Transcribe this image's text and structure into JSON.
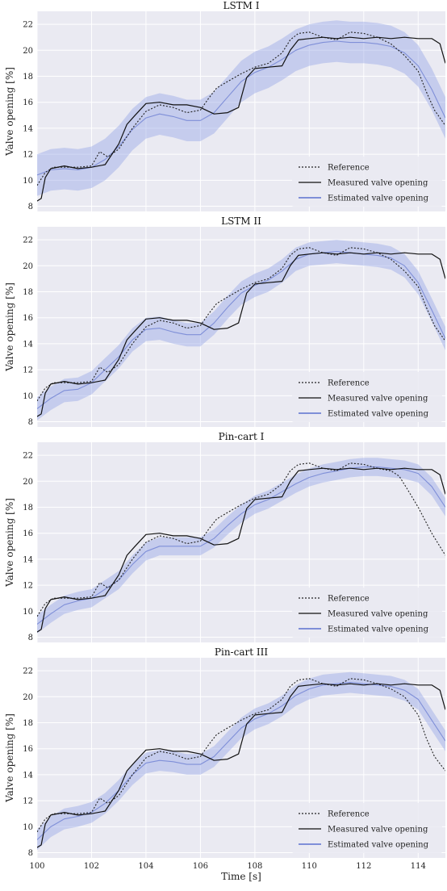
{
  "chart_data": [
    {
      "type": "line",
      "title": "LSTM I",
      "xlabel": "",
      "ylabel": "Valve opening [%]",
      "xlim": [
        100,
        115
      ],
      "ylim": [
        7.6,
        23
      ],
      "grid": true,
      "legend": "bottom-right",
      "xticks": [
        100,
        102,
        104,
        106,
        108,
        110,
        112,
        114
      ],
      "yticks": [
        8,
        10,
        12,
        14,
        16,
        18,
        20,
        22
      ],
      "series": [
        {
          "name": "Reference",
          "style": "dotted",
          "color": "#222222",
          "x": [
            100,
            100.3,
            100.6,
            101,
            101.5,
            102,
            102.3,
            102.6,
            103,
            103.5,
            104,
            104.5,
            105,
            105.5,
            106,
            106.3,
            106.6,
            107,
            107.5,
            108,
            108.5,
            109,
            109.3,
            109.6,
            110,
            110.5,
            111,
            111.5,
            112,
            112.5,
            113,
            113.5,
            114,
            114.3,
            114.6,
            115
          ],
          "y": [
            9.6,
            10.6,
            11.0,
            11.0,
            11.0,
            11.1,
            12.2,
            11.8,
            12.4,
            14.0,
            15.3,
            15.8,
            15.6,
            15.2,
            15.4,
            16.3,
            17.1,
            17.6,
            18.2,
            18.7,
            19.0,
            19.8,
            20.8,
            21.3,
            21.4,
            21.0,
            20.8,
            21.4,
            21.3,
            21.0,
            20.5,
            19.6,
            18.4,
            16.8,
            15.4,
            14.2
          ]
        },
        {
          "name": "Measured valve opening",
          "style": "solid",
          "color": "#111111",
          "x": [
            100,
            100.15,
            100.3,
            100.5,
            101,
            101.5,
            102,
            102.5,
            103,
            103.3,
            103.6,
            104,
            104.5,
            105,
            105.5,
            106,
            106.5,
            107,
            107.4,
            107.7,
            108,
            108.5,
            109,
            109.3,
            109.6,
            110,
            110.5,
            111,
            111.5,
            112,
            112.5,
            113,
            113.5,
            114,
            114.5,
            114.8,
            115
          ],
          "y": [
            8.4,
            8.6,
            10.2,
            10.9,
            11.1,
            10.9,
            11.0,
            11.2,
            12.8,
            14.3,
            15.0,
            15.9,
            16.0,
            15.8,
            15.8,
            15.6,
            15.1,
            15.2,
            15.6,
            17.9,
            18.6,
            18.7,
            18.8,
            20.0,
            20.8,
            20.9,
            21.0,
            20.9,
            21.0,
            20.9,
            21.0,
            20.9,
            21.0,
            20.9,
            20.9,
            20.5,
            19.0
          ]
        },
        {
          "name": "Estimated valve opening",
          "style": "solid",
          "color": "#7f8fd8",
          "x": [
            100,
            100.5,
            101,
            101.5,
            102,
            102.5,
            103,
            103.5,
            104,
            104.5,
            105,
            105.5,
            106,
            106.5,
            107,
            107.5,
            108,
            108.5,
            109,
            109.5,
            110,
            110.5,
            111,
            111.5,
            112,
            112.5,
            113,
            113.5,
            114,
            114.5,
            115
          ],
          "y": [
            10.4,
            10.8,
            10.9,
            10.8,
            11.0,
            11.6,
            12.6,
            13.9,
            14.8,
            15.1,
            14.9,
            14.6,
            14.6,
            15.2,
            16.4,
            17.6,
            18.3,
            18.7,
            19.3,
            20.0,
            20.4,
            20.6,
            20.7,
            20.6,
            20.6,
            20.5,
            20.3,
            19.8,
            18.8,
            17.0,
            14.8
          ]
        }
      ]
    },
    {
      "type": "line",
      "title": "LSTM II",
      "xlabel": "",
      "ylabel": "Valve opening [%]",
      "xlim": [
        100,
        115
      ],
      "ylim": [
        7.6,
        23
      ],
      "grid": true,
      "legend": "bottom-right",
      "xticks": [
        100,
        102,
        104,
        106,
        108,
        110,
        112,
        114
      ],
      "yticks": [
        8,
        10,
        12,
        14,
        16,
        18,
        20,
        22
      ],
      "series": [
        {
          "name": "Reference",
          "style": "dotted",
          "color": "#222222",
          "x": [
            100,
            100.3,
            100.6,
            101,
            101.5,
            102,
            102.3,
            102.6,
            103,
            103.5,
            104,
            104.5,
            105,
            105.5,
            106,
            106.3,
            106.6,
            107,
            107.5,
            108,
            108.5,
            109,
            109.3,
            109.6,
            110,
            110.5,
            111,
            111.5,
            112,
            112.5,
            113,
            113.5,
            114,
            114.3,
            114.6,
            115
          ],
          "y": [
            9.6,
            10.6,
            11.0,
            11.0,
            11.0,
            11.1,
            12.2,
            11.8,
            12.4,
            14.0,
            15.3,
            15.8,
            15.6,
            15.2,
            15.4,
            16.3,
            17.1,
            17.6,
            18.2,
            18.7,
            19.0,
            19.8,
            20.8,
            21.3,
            21.4,
            21.0,
            20.8,
            21.4,
            21.3,
            21.0,
            20.5,
            19.6,
            18.4,
            16.8,
            15.4,
            14.2
          ]
        },
        {
          "name": "Measured valve opening",
          "style": "solid",
          "color": "#111111",
          "x": [
            100,
            100.15,
            100.3,
            100.5,
            101,
            101.5,
            102,
            102.5,
            103,
            103.3,
            103.6,
            104,
            104.5,
            105,
            105.5,
            106,
            106.5,
            107,
            107.4,
            107.7,
            108,
            108.5,
            109,
            109.3,
            109.6,
            110,
            110.5,
            111,
            111.5,
            112,
            112.5,
            113,
            113.5,
            114,
            114.5,
            114.8,
            115
          ],
          "y": [
            8.4,
            8.6,
            10.2,
            10.9,
            11.1,
            10.9,
            11.0,
            11.2,
            12.8,
            14.3,
            15.0,
            15.9,
            16.0,
            15.8,
            15.8,
            15.6,
            15.1,
            15.2,
            15.6,
            17.9,
            18.6,
            18.7,
            18.8,
            20.0,
            20.8,
            20.9,
            21.0,
            20.9,
            21.0,
            20.9,
            21.0,
            20.9,
            21.0,
            20.9,
            20.9,
            20.5,
            19.0
          ]
        },
        {
          "name": "Estimated valve opening",
          "style": "solid",
          "color": "#7f8fd8",
          "x": [
            100,
            100.5,
            101,
            101.5,
            102,
            102.5,
            103,
            103.5,
            104,
            104.5,
            105,
            105.5,
            106,
            106.5,
            107,
            107.5,
            108,
            108.5,
            109,
            109.5,
            110,
            110.5,
            111,
            111.5,
            112,
            112.5,
            113,
            113.5,
            114,
            114.5,
            115
          ],
          "y": [
            9.0,
            9.8,
            10.4,
            10.5,
            11.0,
            12.0,
            13.0,
            14.3,
            15.1,
            15.2,
            14.9,
            14.7,
            14.7,
            15.6,
            16.8,
            17.9,
            18.5,
            18.9,
            19.6,
            20.5,
            20.9,
            21.0,
            21.1,
            21.0,
            20.9,
            20.8,
            20.6,
            20.0,
            18.7,
            16.6,
            14.4
          ]
        }
      ]
    },
    {
      "type": "line",
      "title": "Pin-cart I",
      "xlabel": "",
      "ylabel": "Valve opening [%]",
      "xlim": [
        100,
        115
      ],
      "ylim": [
        7.6,
        23
      ],
      "grid": true,
      "legend": "bottom-right",
      "xticks": [
        100,
        102,
        104,
        106,
        108,
        110,
        112,
        114
      ],
      "yticks": [
        8,
        10,
        12,
        14,
        16,
        18,
        20,
        22
      ],
      "series": [
        {
          "name": "Reference",
          "style": "dotted",
          "color": "#222222",
          "x": [
            100,
            100.3,
            100.6,
            101,
            101.5,
            102,
            102.3,
            102.6,
            103,
            103.5,
            104,
            104.5,
            105,
            105.5,
            106,
            106.3,
            106.6,
            107,
            107.5,
            108,
            108.5,
            109,
            109.3,
            109.6,
            110,
            110.5,
            111,
            111.5,
            112,
            112.5,
            113,
            113.3,
            113.6,
            114,
            114.5,
            115
          ],
          "y": [
            9.6,
            10.6,
            11.0,
            11.0,
            11.0,
            11.1,
            12.2,
            11.8,
            12.4,
            14.0,
            15.3,
            15.8,
            15.6,
            15.2,
            15.4,
            16.3,
            17.1,
            17.6,
            18.2,
            18.7,
            19.0,
            19.8,
            20.8,
            21.3,
            21.4,
            21.0,
            20.8,
            21.4,
            21.3,
            21.0,
            20.8,
            20.4,
            19.4,
            18.0,
            16.0,
            14.3
          ]
        },
        {
          "name": "Measured valve opening",
          "style": "solid",
          "color": "#111111",
          "x": [
            100,
            100.15,
            100.3,
            100.5,
            101,
            101.5,
            102,
            102.5,
            103,
            103.3,
            103.6,
            104,
            104.5,
            105,
            105.5,
            106,
            106.5,
            107,
            107.4,
            107.7,
            108,
            108.5,
            109,
            109.3,
            109.6,
            110,
            110.5,
            111,
            111.5,
            112,
            112.5,
            113,
            113.5,
            114,
            114.5,
            114.8,
            115
          ],
          "y": [
            8.4,
            8.6,
            10.2,
            10.9,
            11.1,
            10.9,
            11.0,
            11.2,
            12.8,
            14.3,
            15.0,
            15.9,
            16.0,
            15.8,
            15.8,
            15.6,
            15.1,
            15.2,
            15.6,
            17.9,
            18.6,
            18.7,
            18.8,
            20.0,
            20.8,
            20.9,
            21.0,
            20.9,
            21.0,
            20.9,
            21.0,
            20.9,
            21.0,
            20.9,
            20.9,
            20.5,
            19.0
          ]
        },
        {
          "name": "Estimated valve opening",
          "style": "solid",
          "color": "#7f8fd8",
          "x": [
            100,
            100.5,
            101,
            101.5,
            102,
            102.5,
            103,
            103.5,
            104,
            104.5,
            105,
            105.5,
            106,
            106.5,
            107,
            107.5,
            108,
            108.5,
            109,
            109.5,
            110,
            110.5,
            111,
            111.5,
            112,
            112.5,
            113,
            113.5,
            114,
            114.5,
            115
          ],
          "y": [
            9.0,
            9.8,
            10.5,
            10.8,
            11.0,
            11.7,
            12.4,
            13.6,
            14.6,
            15.0,
            15.0,
            15.0,
            15.0,
            15.6,
            16.6,
            17.5,
            18.2,
            18.6,
            19.2,
            19.8,
            20.3,
            20.6,
            20.8,
            21.0,
            21.1,
            21.1,
            21.0,
            20.9,
            20.6,
            19.6,
            18.0
          ]
        }
      ]
    },
    {
      "type": "line",
      "title": "Pin-cart III",
      "xlabel": "Time [s]",
      "ylabel": "Valve opening [%]",
      "xlim": [
        100,
        115
      ],
      "ylim": [
        7.6,
        23
      ],
      "grid": true,
      "legend": "bottom-right",
      "xticks": [
        100,
        102,
        104,
        106,
        108,
        110,
        112,
        114
      ],
      "yticks": [
        8,
        10,
        12,
        14,
        16,
        18,
        20,
        22
      ],
      "series": [
        {
          "name": "Reference",
          "style": "dotted",
          "color": "#222222",
          "x": [
            100,
            100.3,
            100.6,
            101,
            101.5,
            102,
            102.3,
            102.6,
            103,
            103.5,
            104,
            104.5,
            105,
            105.5,
            106,
            106.3,
            106.6,
            107,
            107.5,
            108,
            108.5,
            109,
            109.3,
            109.6,
            110,
            110.5,
            111,
            111.5,
            112,
            112.5,
            113,
            113.5,
            114,
            114.3,
            114.6,
            115
          ],
          "y": [
            9.6,
            10.6,
            11.0,
            11.0,
            11.0,
            11.1,
            12.2,
            11.8,
            12.4,
            14.0,
            15.3,
            15.8,
            15.6,
            15.2,
            15.4,
            16.3,
            17.1,
            17.6,
            18.2,
            18.7,
            19.0,
            19.8,
            20.8,
            21.3,
            21.4,
            21.0,
            20.8,
            21.4,
            21.3,
            21.0,
            20.6,
            20.0,
            18.6,
            16.8,
            15.4,
            14.3
          ]
        },
        {
          "name": "Measured valve opening",
          "style": "solid",
          "color": "#111111",
          "x": [
            100,
            100.15,
            100.3,
            100.5,
            101,
            101.5,
            102,
            102.5,
            103,
            103.3,
            103.6,
            104,
            104.5,
            105,
            105.5,
            106,
            106.5,
            107,
            107.4,
            107.7,
            108,
            108.5,
            109,
            109.3,
            109.6,
            110,
            110.5,
            111,
            111.5,
            112,
            112.5,
            113,
            113.5,
            114,
            114.5,
            114.8,
            115
          ],
          "y": [
            8.4,
            8.6,
            10.2,
            10.9,
            11.1,
            10.9,
            11.0,
            11.2,
            12.8,
            14.3,
            15.0,
            15.9,
            16.0,
            15.8,
            15.8,
            15.6,
            15.1,
            15.2,
            15.6,
            17.9,
            18.6,
            18.7,
            18.8,
            20.0,
            20.8,
            20.9,
            21.0,
            20.9,
            21.0,
            20.9,
            21.0,
            20.9,
            21.0,
            20.9,
            20.9,
            20.5,
            19.0
          ]
        },
        {
          "name": "Estimated valve opening",
          "style": "solid",
          "color": "#7f8fd8",
          "x": [
            100,
            100.5,
            101,
            101.5,
            102,
            102.5,
            103,
            103.5,
            104,
            104.5,
            105,
            105.5,
            106,
            106.5,
            107,
            107.5,
            108,
            108.5,
            109,
            109.5,
            110,
            110.5,
            111,
            111.5,
            112,
            112.5,
            113,
            113.5,
            114,
            114.5,
            115
          ],
          "y": [
            9.0,
            10.0,
            10.6,
            10.8,
            11.1,
            11.8,
            12.8,
            14.0,
            14.9,
            15.1,
            15.0,
            14.8,
            14.8,
            15.4,
            16.5,
            17.6,
            18.3,
            18.7,
            19.3,
            20.1,
            20.6,
            20.9,
            21.0,
            21.1,
            21.0,
            20.9,
            20.8,
            20.5,
            19.8,
            18.2,
            16.6
          ]
        }
      ]
    }
  ]
}
